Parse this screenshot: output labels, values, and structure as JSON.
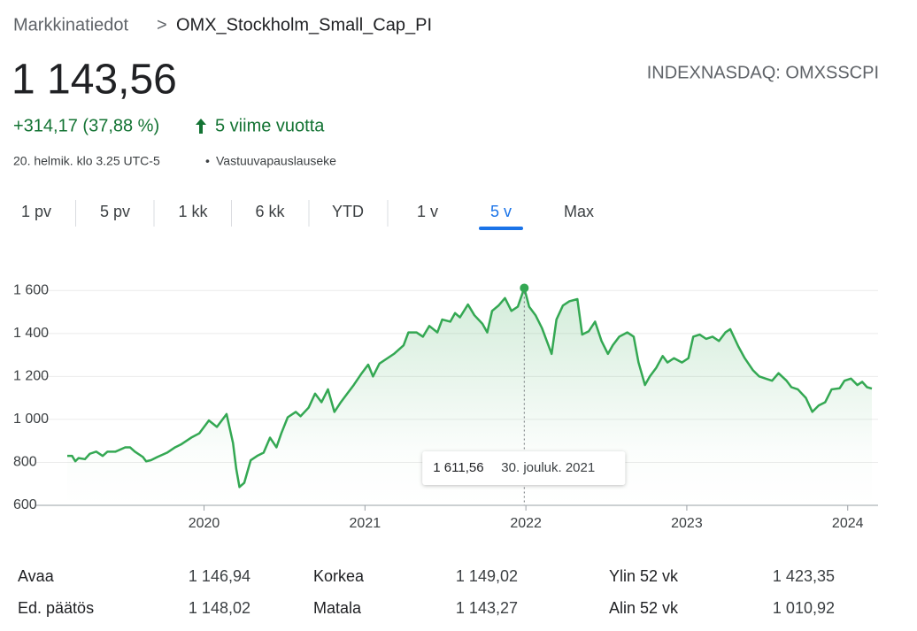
{
  "header": {
    "breadcrumb": "Markkinatiedot",
    "separator": ">",
    "title": "OMX_Stockholm_Small_Cap_PI",
    "price": "1 143,56",
    "exchange": "INDEXNASDAQ: OMXSSCPI",
    "change": "+314,17 (37,88 %)",
    "period": "5 viime vuotta",
    "timestamp": "20. helmik. klo 3.25 UTC-5",
    "dot": "•",
    "disclaimer": "Vastuuvapauslauseke"
  },
  "tabs": [
    "1 pv",
    "5 pv",
    "1 kk",
    "6 kk",
    "YTD",
    "1 v",
    "5 v",
    "Max"
  ],
  "active_tab": 6,
  "chart_data": {
    "type": "line",
    "color": "#34a853",
    "grid": true,
    "x": [
      2019.15,
      2019.18,
      2019.2,
      2019.22,
      2019.26,
      2019.29,
      2019.33,
      2019.37,
      2019.4,
      2019.45,
      2019.51,
      2019.54,
      2019.57,
      2019.62,
      2019.64,
      2019.67,
      2019.71,
      2019.77,
      2019.82,
      2019.86,
      2019.92,
      2019.97,
      2020.03,
      2020.08,
      2020.14,
      2020.18,
      2020.2,
      2020.22,
      2020.25,
      2020.29,
      2020.33,
      2020.37,
      2020.41,
      2020.45,
      2020.48,
      2020.52,
      2020.57,
      2020.6,
      2020.65,
      2020.69,
      2020.73,
      2020.77,
      2020.81,
      2020.85,
      2020.89,
      2020.93,
      2020.98,
      2021.02,
      2021.05,
      2021.09,
      2021.14,
      2021.18,
      2021.24,
      2021.27,
      2021.32,
      2021.36,
      2021.4,
      2021.45,
      2021.48,
      2021.53,
      2021.56,
      2021.59,
      2021.64,
      2021.68,
      2021.73,
      2021.76,
      2021.79,
      2021.83,
      2021.87,
      2021.91,
      2021.95,
      2021.99,
      2022.02,
      2022.06,
      2022.1,
      2022.13,
      2022.16,
      2022.19,
      2022.23,
      2022.27,
      2022.32,
      2022.35,
      2022.39,
      2022.43,
      2022.47,
      2022.51,
      2022.54,
      2022.58,
      2022.63,
      2022.67,
      2022.7,
      2022.74,
      2022.77,
      2022.81,
      2022.85,
      2022.88,
      2022.92,
      2022.97,
      2023.01,
      2023.04,
      2023.08,
      2023.12,
      2023.16,
      2023.2,
      2023.24,
      2023.27,
      2023.32,
      2023.36,
      2023.41,
      2023.45,
      2023.49,
      2023.53,
      2023.57,
      2023.62,
      2023.65,
      2023.69,
      2023.74,
      2023.78,
      2023.82,
      2023.86,
      2023.9,
      2023.95,
      2023.98,
      2024.02,
      2024.06,
      2024.09,
      2024.12,
      2024.15
    ],
    "values": [
      830,
      830,
      805,
      820,
      815,
      840,
      850,
      830,
      850,
      850,
      870,
      870,
      850,
      825,
      805,
      810,
      825,
      845,
      870,
      885,
      915,
      935,
      995,
      965,
      1025,
      890,
      770,
      685,
      705,
      810,
      830,
      845,
      915,
      870,
      935,
      1010,
      1035,
      1015,
      1055,
      1120,
      1080,
      1140,
      1035,
      1080,
      1120,
      1160,
      1215,
      1255,
      1200,
      1260,
      1285,
      1305,
      1345,
      1405,
      1405,
      1385,
      1435,
      1405,
      1465,
      1455,
      1495,
      1475,
      1535,
      1485,
      1445,
      1405,
      1505,
      1530,
      1565,
      1505,
      1525,
      1611.56,
      1525,
      1485,
      1425,
      1365,
      1305,
      1465,
      1530,
      1550,
      1560,
      1395,
      1410,
      1455,
      1365,
      1305,
      1345,
      1385,
      1405,
      1385,
      1265,
      1160,
      1200,
      1240,
      1295,
      1265,
      1285,
      1265,
      1285,
      1385,
      1395,
      1375,
      1385,
      1365,
      1405,
      1420,
      1340,
      1285,
      1230,
      1200,
      1190,
      1180,
      1215,
      1180,
      1150,
      1140,
      1100,
      1035,
      1065,
      1080,
      1140,
      1145,
      1180,
      1190,
      1160,
      1175,
      1150,
      1143.56
    ],
    "xlim": [
      2019.15,
      2024.15
    ],
    "xticks": [
      2020,
      2021,
      2022,
      2023,
      2024
    ],
    "ylim": [
      600,
      1700
    ],
    "yticks": [
      600,
      800,
      {
        "value": 1000,
        "label": "1 000"
      },
      {
        "value": 1200,
        "label": "1 200"
      },
      {
        "value": 1400,
        "label": "1 400"
      },
      {
        "value": 1600,
        "label": "1 600"
      }
    ],
    "highlight": {
      "x": 2021.99,
      "y": 1611.56,
      "label": "1 611,56",
      "date_label": "30. jouluk. 2021"
    }
  },
  "stats": {
    "rows": [
      [
        "Avaa",
        "1 146,94",
        "Korkea",
        "1 149,02",
        "Ylin 52 vk",
        "1 423,35"
      ],
      [
        "Ed. päätös",
        "1 148,02",
        "Matala",
        "1 143,27",
        "Alin 52 vk",
        "1 010,92"
      ]
    ]
  }
}
